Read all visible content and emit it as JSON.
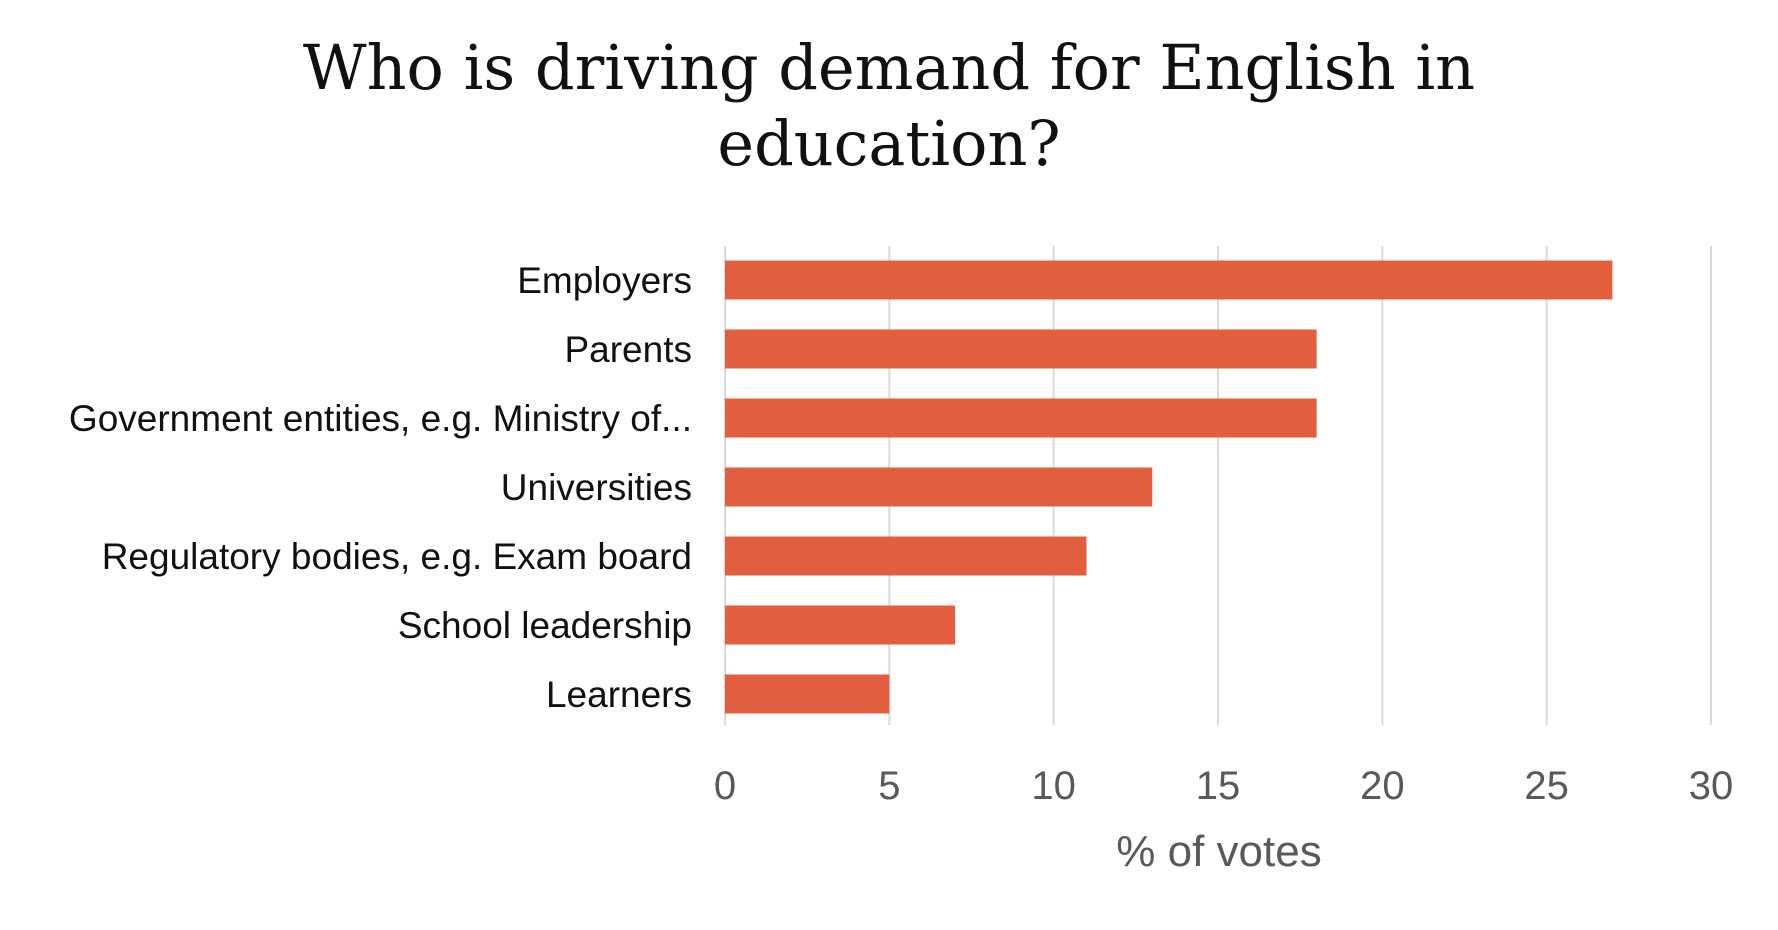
{
  "chart_data": {
    "type": "bar",
    "orientation": "horizontal",
    "title": "Who is driving demand for English in education?",
    "title_lines": [
      "Who is driving demand for English in",
      "education?"
    ],
    "categories": [
      "Employers",
      "Parents",
      "Government entities, e.g. Ministry of...",
      "Universities",
      "Regulatory bodies, e.g. Exam board",
      "School leadership",
      "Learners"
    ],
    "values": [
      27,
      18,
      18,
      13,
      11,
      7,
      5
    ],
    "xlabel": "% of votes",
    "ylabel": "",
    "xlim": [
      0,
      30
    ],
    "xticks": [
      "0",
      "5",
      "10",
      "15",
      "20",
      "25",
      "30"
    ],
    "grid": "vertical",
    "legend": "none",
    "bar_color": "#E15F3E",
    "grid_color": "#D9D9D9",
    "tick_label_color": "#595959"
  }
}
